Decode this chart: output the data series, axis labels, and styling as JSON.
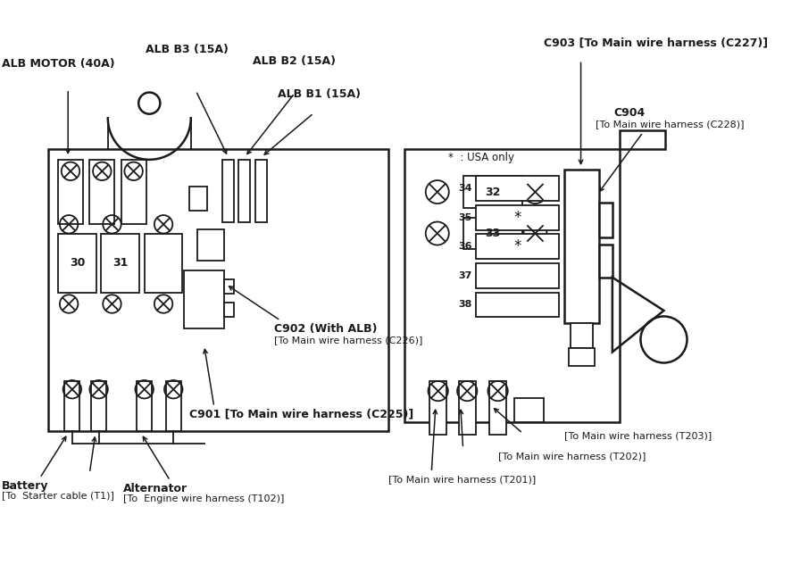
{
  "bg_color": "#ffffff",
  "lc": "#1a1a1a",
  "labels": {
    "alb_motor": "ALB MOTOR (40A)",
    "alb_b3": "ALB B3 (15A)",
    "alb_b2": "ALB B2 (15A)",
    "alb_b1": "ALB B1 (15A)",
    "c903": "C903 [To Main wire harness (C227)]",
    "c904_1": "C904",
    "c904_2": "[To Main wire harness (C228)]",
    "usa_only": "*  : USA only",
    "c902_1": "C902 (With ALB)",
    "c902_2": "[To Main wire harness (C226)]",
    "c901": "C901 [To Main wire harness (C225)]",
    "bat_1": "Battery",
    "bat_2": "[To  Starter cable (T1)]",
    "alt_1": "Alternator",
    "alt_2": "[To  Engine wire harness (T102)]",
    "t203": "[To Main wire harness (T203)]",
    "t202": "[To Main wire harness (T202)]",
    "t201": "[To Main wire harness (T201)]"
  }
}
